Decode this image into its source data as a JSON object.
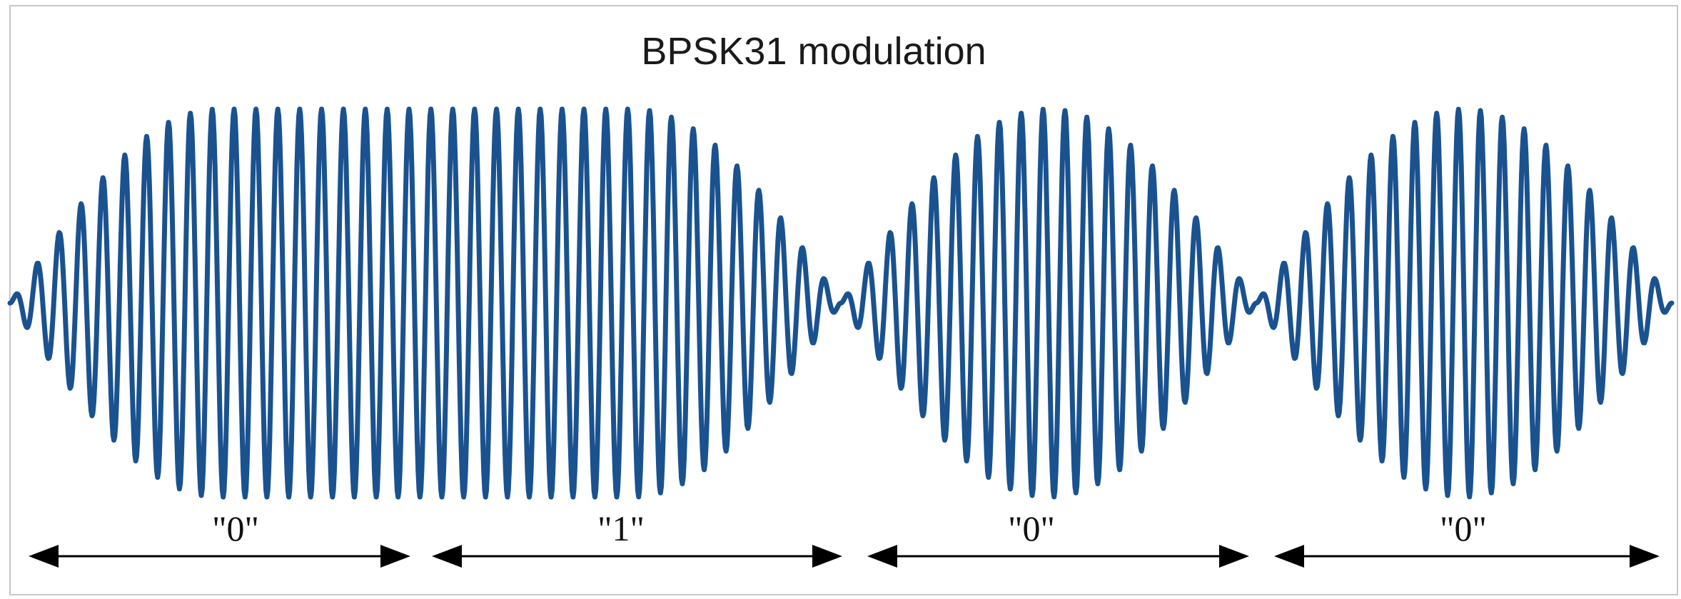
{
  "title": "BPSK31 modulation",
  "colors": {
    "waveform": "#1a5290",
    "arrows": "#000000",
    "frame": "#c8c8c8"
  },
  "signal": {
    "carrier_cycles_per_bit": 19,
    "phase_reversal_between_bits": [
      true,
      false,
      true,
      true
    ]
  },
  "bits": [
    {
      "label": "\"0\"",
      "value": 0
    },
    {
      "label": "\"1\"",
      "value": 1
    },
    {
      "label": "\"0\"",
      "value": 0
    },
    {
      "label": "\"0\"",
      "value": 0
    }
  ]
}
